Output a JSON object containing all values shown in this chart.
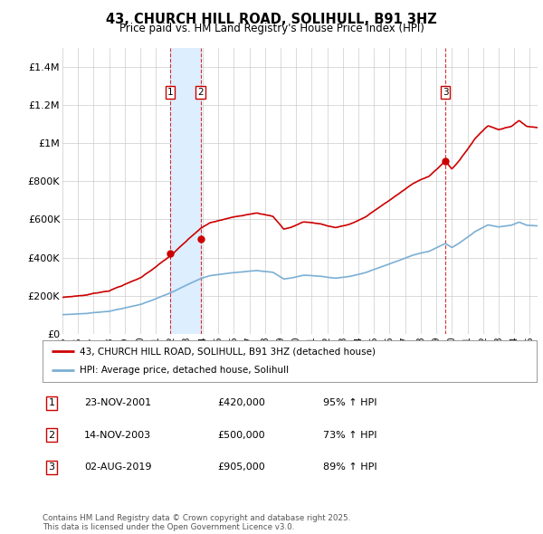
{
  "title": "43, CHURCH HILL ROAD, SOLIHULL, B91 3HZ",
  "subtitle": "Price paid vs. HM Land Registry's House Price Index (HPI)",
  "property_label": "43, CHURCH HILL ROAD, SOLIHULL, B91 3HZ (detached house)",
  "hpi_label": "HPI: Average price, detached house, Solihull",
  "ylim": [
    0,
    1500000
  ],
  "yticks": [
    0,
    200000,
    400000,
    600000,
    800000,
    1000000,
    1200000,
    1400000
  ],
  "ytick_labels": [
    "£0",
    "£200K",
    "£400K",
    "£600K",
    "£800K",
    "£1M",
    "£1.2M",
    "£1.4M"
  ],
  "xlim_start": 1995.0,
  "xlim_end": 2025.5,
  "transactions": [
    {
      "date": 2001.9,
      "price": 420000,
      "label": "1"
    },
    {
      "date": 2003.87,
      "price": 500000,
      "label": "2"
    },
    {
      "date": 2019.58,
      "price": 905000,
      "label": "3"
    }
  ],
  "transaction_table": [
    {
      "num": "1",
      "date": "23-NOV-2001",
      "price": "£420,000",
      "hpi": "95% ↑ HPI"
    },
    {
      "num": "2",
      "date": "14-NOV-2003",
      "price": "£500,000",
      "hpi": "73% ↑ HPI"
    },
    {
      "num": "3",
      "date": "02-AUG-2019",
      "price": "£905,000",
      "hpi": "89% ↑ HPI"
    }
  ],
  "footer": "Contains HM Land Registry data © Crown copyright and database right 2025.\nThis data is licensed under the Open Government Licence v3.0.",
  "property_color": "#cc0000",
  "hpi_color": "#7bafd4",
  "hpi_span_color": "#ddeeff",
  "vline_color": "#cc0000",
  "background_color": "#ffffff",
  "grid_color": "#cccccc"
}
